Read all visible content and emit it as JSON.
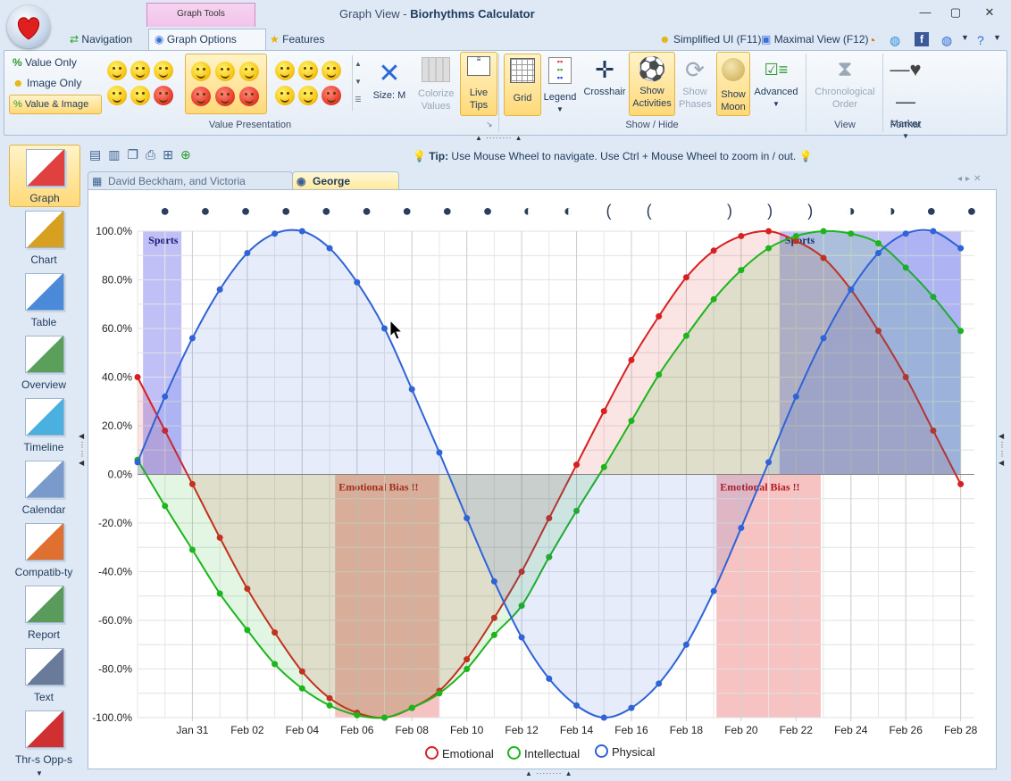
{
  "window": {
    "context_tab": "Graph Tools",
    "title_prefix": "Graph View  -",
    "title_app": "Biorhythms Calculator",
    "minimize": "—",
    "maximize": "▢",
    "close": "✕"
  },
  "tabs": {
    "navigation": "Navigation",
    "graph_options": "Graph Options",
    "features": "Features"
  },
  "quick": {
    "simplified": "Simplified UI (F11)",
    "maximal": "Maximal View (F12)"
  },
  "ribbon": {
    "value_presentation": {
      "label": "Value Presentation",
      "options": [
        "Value Only",
        "Image Only",
        "Value & Image"
      ],
      "size": "Size: M",
      "colorize": "Colorize Values",
      "live_tips": "Live Tips"
    },
    "show_hide": {
      "label": "Show / Hide",
      "grid": "Grid",
      "legend": "Legend",
      "crosshair": "Crosshair",
      "show_activities": "Show Activities",
      "show_phases": "Show Phases",
      "show_moon": "Show Moon",
      "advanced": "Advanced"
    },
    "view": {
      "label": "View",
      "chronological": "Chronological Order"
    },
    "format": {
      "label": "Format",
      "marker": "Marker"
    }
  },
  "leftnav": [
    "Graph",
    "Chart",
    "Table",
    "Overview",
    "Timeline",
    "Calendar",
    "Compatib-ty",
    "Report",
    "Text",
    "Thr-s Opp-s"
  ],
  "tip": {
    "label": "Tip:",
    "text": "Use Mouse Wheel to navigate. Use Ctrl + Mouse Wheel to zoom in / out."
  },
  "doc_tabs": [
    "David Beckham, and Victoria Beckham",
    "George Clooney"
  ],
  "colors": {
    "emotional": "#d92020",
    "intellectual": "#1cb51c",
    "physical": "#2f63d6",
    "sports": "#8c8cf0",
    "bias": "#f09090"
  },
  "chart_data": {
    "type": "line",
    "ylim": [
      -100,
      100
    ],
    "yticks": [
      "100.0%",
      "80.0%",
      "60.0%",
      "40.0%",
      "20.0%",
      "0.0%",
      "-20.0%",
      "-40.0%",
      "-60.0%",
      "-80.0%",
      "-100.0%"
    ],
    "x_start_day": 0,
    "x_end_day": 30.5,
    "xtick_labels": [
      "Jan 31",
      "Feb 02",
      "Feb 04",
      "Feb 06",
      "Feb 08",
      "Feb 10",
      "Feb 12",
      "Feb 14",
      "Feb 16",
      "Feb 18",
      "Feb 20",
      "Feb 22",
      "Feb 24",
      "Feb 26",
      "Feb 28"
    ],
    "xtick_days": [
      2,
      4,
      6,
      8,
      10,
      12,
      14,
      16,
      18,
      20,
      22,
      24,
      26,
      28,
      30
    ],
    "series": [
      {
        "name": "Emotional",
        "values": [
          40,
          18,
          -4,
          -26,
          -47,
          -65,
          -81,
          -92,
          -98,
          -100,
          -96,
          -89,
          -76,
          -59,
          -40,
          -18,
          4,
          26,
          47,
          65,
          81,
          92,
          98,
          100,
          96,
          89,
          76,
          59,
          40,
          18,
          -4
        ]
      },
      {
        "name": "Intellectual",
        "values": [
          6,
          -13,
          -31,
          -49,
          -64,
          -78,
          -88,
          -95,
          -99,
          -100,
          -96,
          -90,
          -80,
          -66,
          -54,
          -34,
          -15,
          3,
          22,
          41,
          57,
          72,
          84,
          93,
          98,
          100,
          99,
          95,
          85,
          73,
          59
        ]
      },
      {
        "name": "Physical",
        "values": [
          5,
          32,
          56,
          76,
          91,
          99,
          100,
          93,
          79,
          60,
          35,
          9,
          -18,
          -44,
          -67,
          -84,
          -95,
          -100,
          -96,
          -86,
          -70,
          -48,
          -22,
          5,
          32,
          56,
          76,
          91,
          99,
          100,
          93
        ]
      }
    ],
    "bands": [
      {
        "label": "Sports",
        "from": 0.2,
        "to": 1.6,
        "kind": "sports",
        "side": "top"
      },
      {
        "label": "Sports",
        "from": 23.4,
        "to": 30,
        "kind": "sports",
        "side": "top"
      },
      {
        "label": "Emotional Bias !!",
        "from": 7.2,
        "to": 11,
        "kind": "bias",
        "side": "bottom"
      },
      {
        "label": "Emotional Bias !!",
        "from": 21.1,
        "to": 24.9,
        "kind": "bias",
        "side": "bottom"
      }
    ],
    "moon_phases": [
      "●",
      "●",
      "●",
      "●",
      "●",
      "●",
      "●",
      "●",
      "●",
      "◐",
      "◐",
      "(",
      "(",
      "",
      ")",
      ")",
      ")",
      "◑",
      "◑",
      "●",
      "●"
    ],
    "legend": [
      "Emotional",
      "Intellectual",
      "Physical"
    ],
    "grid": true,
    "legend_position": "bottom"
  }
}
